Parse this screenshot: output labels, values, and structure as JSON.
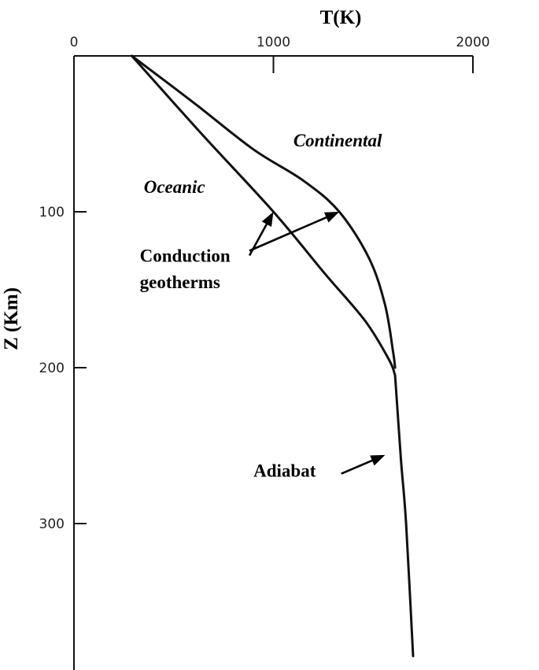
{
  "chart_data": {
    "type": "line",
    "title": "",
    "xlabel": "T(K)",
    "ylabel": "Z (Km)",
    "x_axis_position": "top",
    "y_axis_inverted": true,
    "xlim": [
      0,
      2000
    ],
    "ylim": [
      0,
      390
    ],
    "x_ticks": [
      0,
      1000,
      2000
    ],
    "x_tick_labels": [
      "0",
      "1000",
      "2000"
    ],
    "y_ticks": [
      100,
      200,
      300
    ],
    "y_tick_labels": [
      "100",
      "200",
      "300"
    ],
    "grid": false,
    "series": [
      {
        "name": "Continental",
        "points": [
          [
            290,
            0
          ],
          [
            600,
            30
          ],
          [
            900,
            60
          ],
          [
            1150,
            80
          ],
          [
            1330,
            100
          ],
          [
            1480,
            130
          ],
          [
            1560,
            160
          ],
          [
            1600,
            190
          ],
          [
            1610,
            200
          ]
        ]
      },
      {
        "name": "Oceanic",
        "points": [
          [
            290,
            0
          ],
          [
            640,
            50
          ],
          [
            1000,
            100
          ],
          [
            1260,
            140
          ],
          [
            1460,
            170
          ],
          [
            1580,
            195
          ],
          [
            1610,
            205
          ]
        ]
      },
      {
        "name": "Adiabat",
        "points": [
          [
            1610,
            205
          ],
          [
            1640,
            260
          ],
          [
            1665,
            300
          ],
          [
            1700,
            385
          ]
        ]
      }
    ],
    "annotations": [
      {
        "text": "Continental",
        "italic": true,
        "at": [
          1100,
          58
        ]
      },
      {
        "text": "Oceanic",
        "italic": true,
        "at": [
          350,
          88
        ]
      },
      {
        "text": "Conduction",
        "italic": false,
        "at": [
          330,
          132
        ]
      },
      {
        "text": "geotherms",
        "italic": false,
        "at": [
          330,
          149
        ]
      },
      {
        "text": "Adiabat",
        "italic": false,
        "at": [
          900,
          270
        ]
      }
    ],
    "arrows": [
      {
        "from": [
          880,
          128
        ],
        "to": [
          1000,
          100
        ]
      },
      {
        "from": [
          880,
          125
        ],
        "to": [
          1330,
          100
        ]
      },
      {
        "from": [
          1340,
          268
        ],
        "to": [
          1560,
          256
        ]
      }
    ]
  }
}
